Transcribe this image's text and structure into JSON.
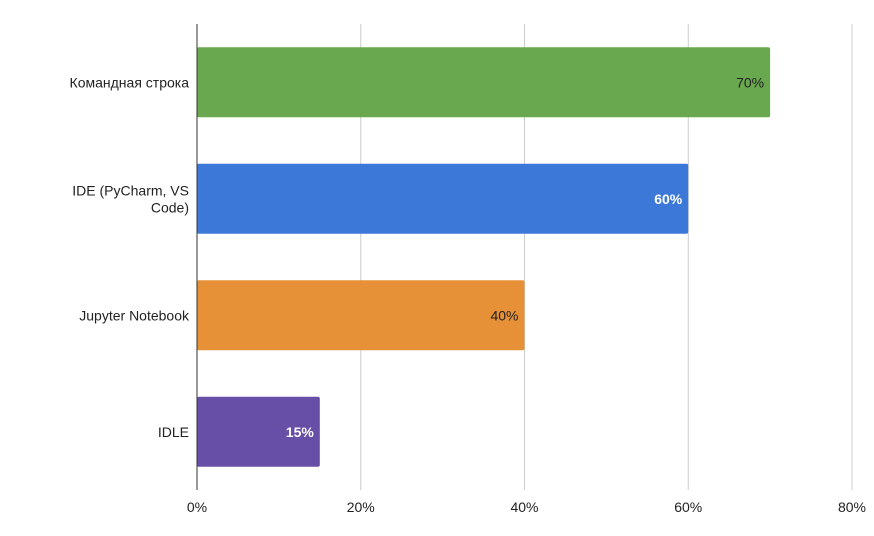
{
  "chart_data": {
    "type": "bar",
    "orientation": "horizontal",
    "categories": [
      [
        "Командная строка"
      ],
      [
        "IDE (PyCharm, VS",
        "Code)"
      ],
      [
        "Jupyter Notebook"
      ],
      [
        "IDLE"
      ]
    ],
    "values": [
      70,
      60,
      40,
      15
    ],
    "data_labels": [
      "70%",
      "60%",
      "40%",
      "15%"
    ],
    "colors": [
      "#6aa84f",
      "#3c78d8",
      "#e69138",
      "#674ea7"
    ],
    "label_colors": [
      "#222222",
      "#ffffff",
      "#222222",
      "#ffffff"
    ],
    "label_bold": [
      false,
      true,
      false,
      true
    ],
    "xlim": [
      0,
      80
    ],
    "xticks": [
      0,
      20,
      40,
      60,
      80
    ],
    "xtick_labels": [
      "0%",
      "20%",
      "40%",
      "60%",
      "80%"
    ],
    "grid": true,
    "title": "",
    "xlabel": "",
    "ylabel": ""
  }
}
